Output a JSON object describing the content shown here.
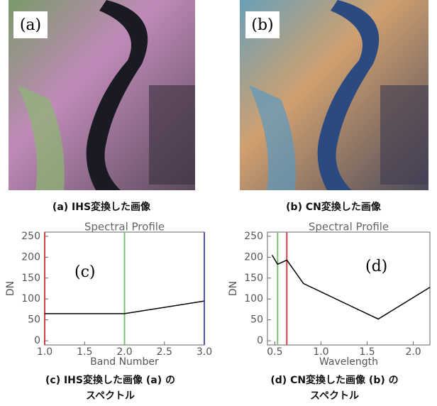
{
  "figures": [
    {
      "label": "(a)",
      "caption": "(a) IHS変換した画像"
    },
    {
      "label": "(b)",
      "caption": "(b) CN変換した画像"
    }
  ],
  "chart_data": [
    {
      "type": "line",
      "title": "Spectral Profile",
      "annotation": "(c)",
      "x_label": "Band Number",
      "y_label": "DN",
      "caption": [
        "(c) IHS変換した画像 (a) の",
        "スペクトル"
      ],
      "x": [
        1,
        2,
        3
      ],
      "values": [
        65,
        65,
        95
      ],
      "color": "#000000",
      "markers": [
        {
          "x": 1,
          "color": "#d04040"
        },
        {
          "x": 2,
          "color": "#7ac070"
        },
        {
          "x": 3,
          "color": "#5050c0"
        }
      ],
      "xlim": [
        1,
        3
      ],
      "ylim": [
        -10,
        260
      ],
      "xticks": [
        {
          "value": 1,
          "label": "1.0"
        },
        {
          "value": 1.5,
          "label": "1.5"
        },
        {
          "value": 2,
          "label": "2.0"
        },
        {
          "value": 2.5,
          "label": "2.5"
        },
        {
          "value": 3,
          "label": "3.0"
        }
      ],
      "yticks": [
        0,
        50,
        100,
        150,
        200,
        250
      ]
    },
    {
      "type": "line",
      "title": "Spectral Profile",
      "annotation": "(d)",
      "x_label": "Wavelength",
      "y_label": "DN",
      "caption": [
        "(d) CN変換した画像 (b) の",
        "スペクトル"
      ],
      "x": [
        0.47,
        0.53,
        0.63,
        0.81,
        1.62,
        2.18
      ],
      "values": [
        205,
        183,
        193,
        137,
        52,
        128
      ],
      "color": "#000000",
      "markers": [
        {
          "x": 0.53,
          "color": "#7ac070"
        },
        {
          "x": 0.63,
          "color": "#d04040"
        }
      ],
      "xlim": [
        0.42,
        2.18
      ],
      "ylim": [
        -10,
        260
      ],
      "xticks": [
        {
          "value": 0.5,
          "label": "0.5"
        },
        {
          "value": 1,
          "label": "1.0"
        },
        {
          "value": 1.5,
          "label": "1.5"
        },
        {
          "value": 2,
          "label": "2.0"
        }
      ],
      "yticks": [
        0,
        50,
        100,
        150,
        200,
        250
      ]
    }
  ]
}
